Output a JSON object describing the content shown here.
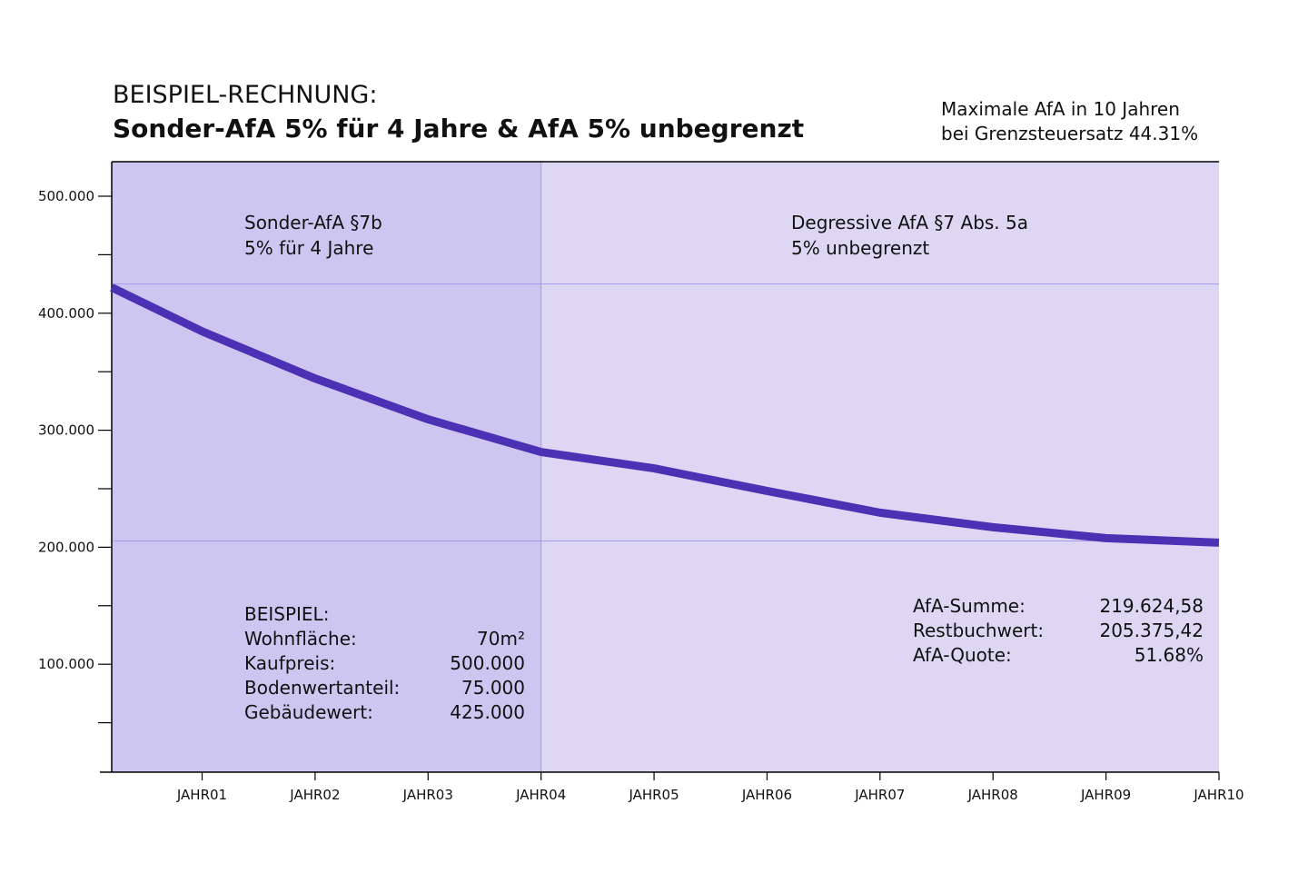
{
  "chart_data": {
    "type": "line",
    "title": "BEISPIEL-RECHNUNG:",
    "subtitle": "Sonder-AfA 5% für 4 Jahre  &  AfA 5% unbegrenzt",
    "note": [
      "Maximale AfA in 10 Jahren",
      "bei Grenzsteuersatz 44.31%"
    ],
    "x": [
      0.2,
      1,
      2,
      3,
      4,
      5,
      6,
      7,
      8,
      9,
      10
    ],
    "series": [
      {
        "name": "Restbuchwert",
        "color": "#4b32b4",
        "values": [
          422000,
          384500,
          344200,
          309300,
          281400,
          267400,
          248100,
          229500,
          217100,
          207800,
          203900
        ]
      }
    ],
    "xlim": [
      0.2,
      10
    ],
    "xticks": [
      {
        "value": 1,
        "label": "JAHR01"
      },
      {
        "value": 2,
        "label": "JAHR02"
      },
      {
        "value": 3,
        "label": "JAHR03"
      },
      {
        "value": 4,
        "label": "JAHR04"
      },
      {
        "value": 5,
        "label": "JAHR05"
      },
      {
        "value": 6,
        "label": "JAHR06"
      },
      {
        "value": 7,
        "label": "JAHR07"
      },
      {
        "value": 8,
        "label": "JAHR08"
      },
      {
        "value": 9,
        "label": "JAHR09"
      },
      {
        "value": 10,
        "label": "JAHR10"
      }
    ],
    "ylim": [
      7750,
      529500
    ],
    "yticks": [
      {
        "value": 100000,
        "label": "100.000"
      },
      {
        "value": 200000,
        "label": "200.000"
      },
      {
        "value": 300000,
        "label": "300.000"
      },
      {
        "value": 400000,
        "label": "400.000"
      },
      {
        "value": 500000,
        "label": "500.000"
      }
    ],
    "yminor": [
      50000,
      150000,
      250000,
      350000,
      450000
    ],
    "regions": [
      {
        "x": [
          0.2,
          4
        ],
        "color": "#cdc6f1",
        "label": [
          "Sonder-AfA §7b",
          "5% für 4 Jahre"
        ]
      },
      {
        "x": [
          4,
          10
        ],
        "color": "#ddd7f4",
        "label": [
          "Degressive AfA §7 Abs. 5a",
          "5% unbegrenzt"
        ]
      }
    ],
    "reference_lines": {
      "x": [
        4
      ],
      "y": [
        425000,
        205375.42
      ],
      "color": "#a49aea"
    },
    "example": {
      "title": "BEISPIEL:",
      "rows": [
        [
          "Wohnfläche:",
          "70m²"
        ],
        [
          "Kaufpreis:",
          "500.000"
        ],
        [
          "Bodenwertanteil:",
          "75.000"
        ],
        [
          "Gebäudewert:",
          "425.000"
        ]
      ]
    },
    "summary": {
      "rows": [
        [
          "AfA-Summe:",
          "219.624,58"
        ],
        [
          "Restbuchwert:",
          "205.375,42"
        ],
        [
          "AfA-Quote:",
          "51.68%"
        ]
      ]
    }
  }
}
